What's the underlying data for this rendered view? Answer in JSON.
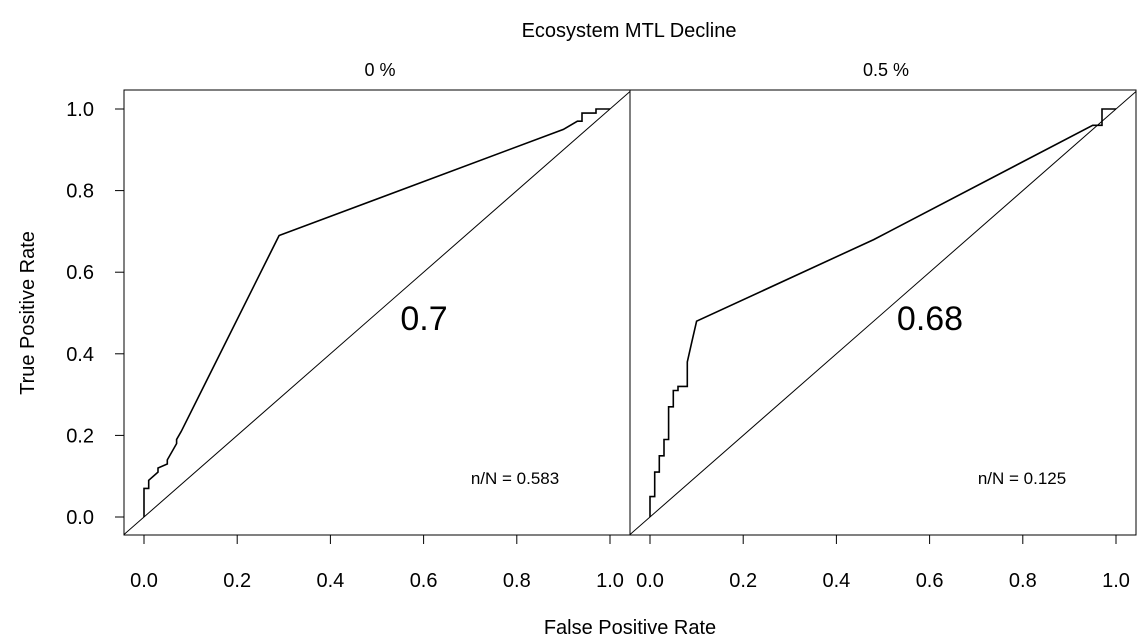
{
  "chart_data": {
    "type": "line",
    "title": "Ecosystem MTL Decline",
    "xlabel": "False Positive Rate",
    "ylabel": "True Positive Rate",
    "xlim": [
      0,
      1
    ],
    "ylim": [
      0,
      1
    ],
    "x_ticks": [
      "0.0",
      "0.2",
      "0.4",
      "0.6",
      "0.8",
      "1.0"
    ],
    "y_ticks": [
      "0.0",
      "0.2",
      "0.4",
      "0.6",
      "0.8",
      "1.0"
    ],
    "grid": false,
    "panels": [
      {
        "panel_title": "0 %",
        "auc_label": "0.7",
        "n_label": "n/N =  0.583",
        "series": [
          {
            "x": [
              0.0,
              0.0,
              0.0,
              0.01,
              0.01,
              0.03,
              0.03,
              0.05,
              0.05,
              0.07,
              0.07,
              0.08,
              0.29,
              0.9,
              0.93,
              0.94,
              0.94,
              0.97,
              0.97,
              1.0
            ],
            "y": [
              0.0,
              0.02,
              0.07,
              0.07,
              0.09,
              0.11,
              0.12,
              0.13,
              0.14,
              0.18,
              0.19,
              0.21,
              0.69,
              0.95,
              0.97,
              0.97,
              0.99,
              0.99,
              1.0,
              1.0
            ]
          }
        ]
      },
      {
        "panel_title": "0.5 %",
        "auc_label": "0.68",
        "n_label": "n/N =  0.125",
        "series": [
          {
            "x": [
              0.0,
              0.0,
              0.01,
              0.01,
              0.02,
              0.02,
              0.03,
              0.03,
              0.04,
              0.04,
              0.05,
              0.05,
              0.06,
              0.06,
              0.08,
              0.08,
              0.09,
              0.1,
              0.48,
              0.95,
              0.97,
              0.97,
              1.0
            ],
            "y": [
              0.0,
              0.05,
              0.05,
              0.11,
              0.11,
              0.15,
              0.15,
              0.19,
              0.19,
              0.27,
              0.27,
              0.31,
              0.31,
              0.32,
              0.32,
              0.38,
              0.43,
              0.48,
              0.68,
              0.96,
              0.96,
              1.0,
              1.0
            ]
          }
        ]
      }
    ]
  }
}
